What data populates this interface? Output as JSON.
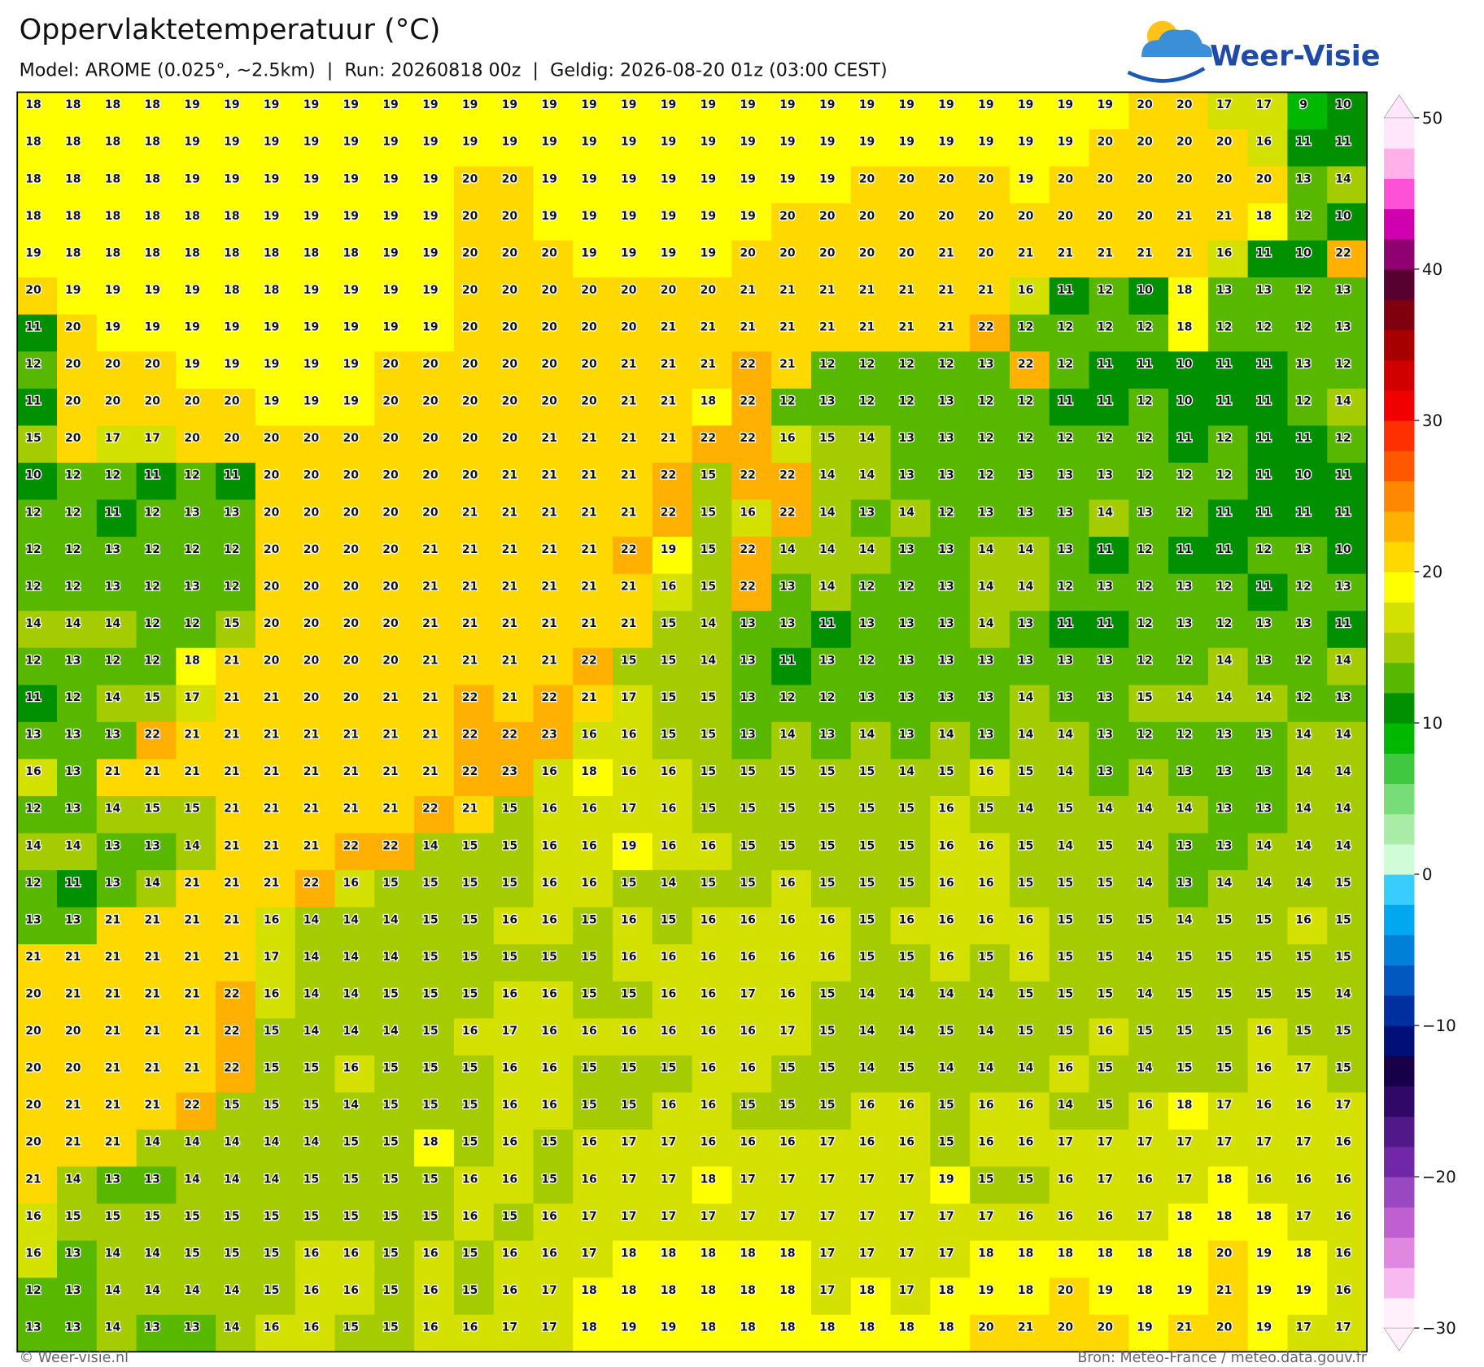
{
  "header": {
    "title": "Oppervlaktetemperatuur (°C)",
    "subtitle": "Model: AROME (0.025°, ~2.5km)  |  Run: 20260818 00z  |  Geldig: 2026-08-20 01z (03:00 CEST)"
  },
  "logo": "Weer-Visie",
  "grid": {
    "rows": [
      [
        18,
        18,
        18,
        18,
        19,
        19,
        19,
        19,
        19,
        19,
        19,
        19,
        19,
        19,
        19,
        19,
        19,
        19,
        19,
        19,
        19,
        19,
        19,
        19,
        19,
        19,
        19,
        19,
        20,
        20,
        17,
        17,
        9,
        10
      ],
      [
        18,
        18,
        18,
        18,
        19,
        19,
        19,
        19,
        19,
        19,
        19,
        19,
        19,
        19,
        19,
        19,
        19,
        19,
        19,
        19,
        19,
        19,
        19,
        19,
        19,
        19,
        19,
        20,
        20,
        20,
        20,
        16,
        11,
        11
      ],
      [
        18,
        18,
        18,
        18,
        19,
        19,
        19,
        19,
        19,
        19,
        19,
        20,
        20,
        19,
        19,
        19,
        19,
        19,
        19,
        19,
        19,
        20,
        20,
        20,
        20,
        19,
        20,
        20,
        20,
        20,
        20,
        20,
        13,
        14
      ],
      [
        18,
        18,
        18,
        18,
        18,
        18,
        19,
        19,
        19,
        19,
        19,
        20,
        20,
        19,
        19,
        19,
        19,
        19,
        19,
        20,
        20,
        20,
        20,
        20,
        20,
        20,
        20,
        20,
        20,
        21,
        21,
        18,
        12,
        10
      ],
      [
        19,
        18,
        18,
        18,
        18,
        18,
        18,
        18,
        18,
        19,
        19,
        20,
        20,
        20,
        19,
        19,
        19,
        19,
        20,
        20,
        20,
        20,
        20,
        21,
        20,
        21,
        21,
        21,
        21,
        21,
        16,
        11,
        10,
        22
      ],
      [
        20,
        19,
        19,
        19,
        19,
        18,
        18,
        19,
        19,
        19,
        19,
        20,
        20,
        20,
        20,
        20,
        20,
        20,
        21,
        21,
        21,
        21,
        21,
        21,
        21,
        16,
        11,
        12,
        10,
        18,
        13,
        13,
        12,
        13
      ],
      [
        11,
        20,
        19,
        19,
        19,
        19,
        19,
        19,
        19,
        19,
        19,
        20,
        20,
        20,
        20,
        20,
        21,
        21,
        21,
        21,
        21,
        21,
        21,
        21,
        22,
        12,
        12,
        12,
        12,
        18,
        12,
        12,
        12,
        13
      ],
      [
        12,
        20,
        20,
        20,
        19,
        19,
        19,
        19,
        19,
        20,
        20,
        20,
        20,
        20,
        20,
        21,
        21,
        21,
        22,
        21,
        12,
        12,
        12,
        12,
        13,
        22,
        12,
        11,
        11,
        10,
        11,
        11,
        13,
        12
      ],
      [
        11,
        20,
        20,
        20,
        20,
        20,
        19,
        19,
        19,
        20,
        20,
        20,
        20,
        20,
        20,
        21,
        21,
        18,
        22,
        12,
        13,
        12,
        12,
        13,
        12,
        12,
        11,
        11,
        12,
        10,
        11,
        11,
        12,
        14
      ],
      [
        15,
        20,
        17,
        17,
        20,
        20,
        20,
        20,
        20,
        20,
        20,
        20,
        20,
        21,
        21,
        21,
        21,
        22,
        22,
        16,
        15,
        14,
        13,
        13,
        12,
        12,
        12,
        12,
        12,
        11,
        12,
        11,
        11,
        12
      ],
      [
        10,
        12,
        12,
        11,
        12,
        11,
        20,
        20,
        20,
        20,
        20,
        20,
        21,
        21,
        21,
        21,
        22,
        15,
        22,
        22,
        14,
        14,
        13,
        13,
        12,
        13,
        13,
        13,
        12,
        12,
        12,
        11,
        10,
        11
      ],
      [
        12,
        12,
        11,
        12,
        13,
        13,
        20,
        20,
        20,
        20,
        20,
        21,
        21,
        21,
        21,
        21,
        22,
        15,
        16,
        22,
        14,
        13,
        14,
        12,
        13,
        13,
        13,
        14,
        13,
        12,
        11,
        11,
        11,
        11
      ],
      [
        12,
        12,
        13,
        12,
        12,
        12,
        20,
        20,
        20,
        20,
        21,
        21,
        21,
        21,
        21,
        22,
        19,
        15,
        22,
        14,
        14,
        14,
        13,
        13,
        14,
        14,
        13,
        11,
        12,
        11,
        11,
        12,
        13,
        10
      ],
      [
        12,
        12,
        13,
        12,
        13,
        12,
        20,
        20,
        20,
        20,
        21,
        21,
        21,
        21,
        21,
        21,
        16,
        15,
        22,
        13,
        14,
        12,
        12,
        13,
        14,
        14,
        12,
        13,
        12,
        13,
        12,
        11,
        12,
        13
      ],
      [
        14,
        14,
        14,
        12,
        12,
        15,
        20,
        20,
        20,
        20,
        21,
        21,
        21,
        21,
        21,
        21,
        15,
        14,
        13,
        13,
        11,
        13,
        13,
        13,
        14,
        13,
        11,
        11,
        12,
        13,
        12,
        13,
        13,
        11
      ],
      [
        12,
        13,
        12,
        12,
        18,
        21,
        20,
        20,
        20,
        20,
        21,
        21,
        21,
        21,
        22,
        15,
        15,
        14,
        13,
        11,
        13,
        12,
        13,
        13,
        13,
        13,
        13,
        13,
        12,
        12,
        14,
        13,
        12,
        14
      ],
      [
        11,
        12,
        14,
        15,
        17,
        21,
        21,
        20,
        20,
        21,
        21,
        22,
        21,
        22,
        21,
        17,
        15,
        15,
        13,
        12,
        12,
        13,
        13,
        13,
        13,
        14,
        13,
        13,
        15,
        14,
        14,
        14,
        12,
        13
      ],
      [
        13,
        13,
        13,
        22,
        21,
        21,
        21,
        21,
        21,
        21,
        21,
        22,
        22,
        23,
        16,
        16,
        15,
        15,
        13,
        14,
        13,
        14,
        13,
        14,
        13,
        14,
        14,
        13,
        12,
        12,
        13,
        13,
        14,
        14
      ],
      [
        16,
        13,
        21,
        21,
        21,
        21,
        21,
        21,
        21,
        21,
        21,
        22,
        23,
        16,
        18,
        16,
        16,
        15,
        15,
        15,
        15,
        15,
        14,
        15,
        16,
        15,
        14,
        13,
        14,
        13,
        13,
        13,
        14,
        14
      ],
      [
        12,
        13,
        14,
        15,
        15,
        21,
        21,
        21,
        21,
        21,
        22,
        21,
        15,
        16,
        16,
        17,
        16,
        15,
        15,
        15,
        15,
        15,
        15,
        16,
        15,
        14,
        15,
        14,
        14,
        14,
        13,
        13,
        14,
        14
      ],
      [
        14,
        14,
        13,
        13,
        14,
        21,
        21,
        21,
        22,
        22,
        14,
        15,
        15,
        16,
        16,
        19,
        16,
        16,
        15,
        15,
        15,
        15,
        15,
        16,
        16,
        15,
        14,
        15,
        14,
        13,
        13,
        14,
        14,
        14
      ],
      [
        12,
        11,
        13,
        14,
        21,
        21,
        21,
        22,
        16,
        15,
        15,
        15,
        15,
        16,
        16,
        15,
        14,
        15,
        15,
        16,
        15,
        15,
        15,
        16,
        16,
        15,
        15,
        15,
        14,
        13,
        14,
        14,
        14,
        15
      ],
      [
        13,
        13,
        21,
        21,
        21,
        21,
        16,
        14,
        14,
        14,
        15,
        15,
        16,
        16,
        15,
        16,
        15,
        16,
        16,
        16,
        16,
        15,
        16,
        16,
        16,
        16,
        15,
        15,
        15,
        14,
        15,
        15,
        16,
        15
      ],
      [
        21,
        21,
        21,
        21,
        21,
        21,
        17,
        14,
        14,
        14,
        15,
        15,
        15,
        15,
        15,
        16,
        16,
        16,
        16,
        16,
        16,
        15,
        15,
        16,
        15,
        16,
        15,
        15,
        14,
        15,
        15,
        15,
        15,
        15
      ],
      [
        20,
        21,
        21,
        21,
        21,
        22,
        16,
        14,
        14,
        15,
        15,
        15,
        16,
        16,
        15,
        15,
        16,
        16,
        17,
        16,
        15,
        14,
        14,
        14,
        14,
        15,
        15,
        15,
        14,
        15,
        15,
        15,
        15,
        14
      ],
      [
        20,
        20,
        21,
        21,
        21,
        22,
        15,
        14,
        14,
        14,
        15,
        16,
        17,
        16,
        16,
        16,
        16,
        16,
        16,
        17,
        15,
        14,
        14,
        15,
        14,
        15,
        15,
        16,
        15,
        15,
        15,
        16,
        15,
        15
      ],
      [
        20,
        20,
        21,
        21,
        21,
        22,
        15,
        15,
        16,
        15,
        15,
        15,
        16,
        16,
        15,
        15,
        15,
        16,
        16,
        15,
        15,
        14,
        15,
        14,
        14,
        14,
        16,
        15,
        14,
        15,
        15,
        16,
        17,
        15
      ],
      [
        20,
        21,
        21,
        21,
        22,
        15,
        15,
        15,
        14,
        15,
        15,
        15,
        16,
        16,
        15,
        15,
        16,
        16,
        15,
        15,
        15,
        16,
        16,
        15,
        16,
        16,
        14,
        15,
        16,
        18,
        17,
        16,
        16,
        17
      ],
      [
        20,
        21,
        21,
        14,
        14,
        14,
        14,
        14,
        15,
        15,
        18,
        15,
        16,
        15,
        16,
        17,
        17,
        16,
        16,
        16,
        17,
        16,
        16,
        15,
        16,
        16,
        17,
        17,
        17,
        17,
        17,
        17,
        17,
        16
      ],
      [
        21,
        14,
        13,
        13,
        14,
        14,
        14,
        15,
        15,
        15,
        15,
        16,
        16,
        15,
        16,
        17,
        17,
        18,
        17,
        17,
        17,
        17,
        17,
        19,
        15,
        15,
        16,
        17,
        16,
        17,
        18,
        16,
        16,
        16
      ],
      [
        16,
        15,
        15,
        15,
        15,
        15,
        15,
        15,
        15,
        15,
        15,
        16,
        15,
        16,
        17,
        17,
        17,
        17,
        17,
        17,
        17,
        17,
        17,
        17,
        17,
        16,
        16,
        16,
        17,
        18,
        18,
        18,
        17,
        16
      ],
      [
        16,
        13,
        14,
        14,
        15,
        15,
        15,
        16,
        16,
        15,
        16,
        15,
        16,
        16,
        17,
        18,
        18,
        18,
        18,
        18,
        17,
        17,
        17,
        17,
        18,
        18,
        18,
        18,
        18,
        18,
        20,
        19,
        18,
        16
      ],
      [
        12,
        13,
        14,
        14,
        14,
        14,
        15,
        16,
        16,
        15,
        16,
        15,
        16,
        17,
        18,
        18,
        18,
        18,
        18,
        18,
        17,
        18,
        17,
        18,
        19,
        18,
        20,
        19,
        18,
        19,
        21,
        19,
        19,
        16
      ],
      [
        13,
        13,
        14,
        13,
        13,
        14,
        16,
        16,
        15,
        15,
        16,
        16,
        17,
        17,
        18,
        19,
        19,
        18,
        18,
        18,
        18,
        18,
        18,
        18,
        20,
        21,
        20,
        20,
        19,
        21,
        20,
        19,
        17,
        17
      ]
    ]
  },
  "colorbar": {
    "lim": [
      -30,
      50
    ],
    "ticks": [
      {
        "value": -30,
        "label": "−30"
      },
      {
        "value": -20,
        "label": "−20"
      },
      {
        "value": -10,
        "label": "−10"
      },
      0,
      10,
      20,
      30,
      40,
      50
    ],
    "colors": [
      "#fff0fc",
      "#f8b8f0",
      "#e088e0",
      "#c060d0",
      "#9848c0",
      "#7028a8",
      "#501888",
      "#300868",
      "#180048",
      "#001078",
      "#0030a0",
      "#0058c0",
      "#0080d8",
      "#00a8f0",
      "#38ccff",
      "#d0fcd8",
      "#a8eca8",
      "#78dc78",
      "#40c840",
      "#00b800",
      "#009000",
      "#58b800",
      "#a4cc00",
      "#d4e000",
      "#ffff00",
      "#ffd800",
      "#ffb000",
      "#ff8800",
      "#ff5800",
      "#ff3000",
      "#f00000",
      "#d00000",
      "#a80000",
      "#800010",
      "#580030",
      "#900070",
      "#d000b0",
      "#ff50d8",
      "#ffb0e8",
      "#ffe6fa"
    ]
  },
  "footer": {
    "left": "© Weer-visie.nl",
    "right": "Bron: Météo-France / meteo.data.gouv.fr"
  }
}
